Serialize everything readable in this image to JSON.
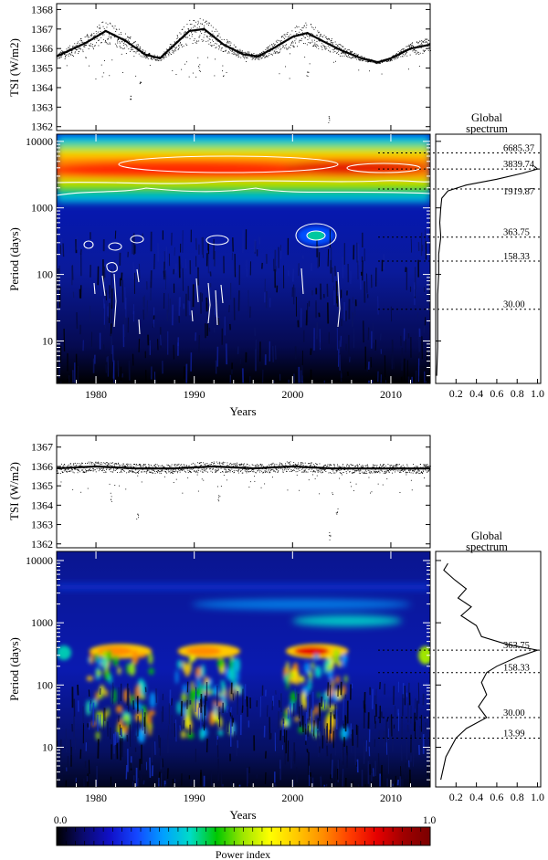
{
  "chart_data": [
    {
      "type": "scatter",
      "panel": "top-tsi-raw",
      "ylabel": "TSI (W/m2)",
      "xlim": [
        1976,
        2014
      ],
      "ylim": [
        1361.8,
        1368.3
      ],
      "yticks": [
        1362,
        1363,
        1364,
        1365,
        1366,
        1367,
        1368
      ],
      "series": [
        {
          "x": [
            1976,
            1979,
            1981,
            1983,
            1985,
            1986.5,
            1988,
            1989.5,
            1991,
            1993,
            1995,
            1996.5,
            1998,
            2000,
            2001.5,
            2003,
            2005,
            2007,
            2008.7,
            2010,
            2012,
            2014
          ],
          "values": [
            1365.6,
            1366.3,
            1366.9,
            1366.4,
            1365.7,
            1365.5,
            1366.2,
            1366.9,
            1367.0,
            1366.2,
            1365.7,
            1365.6,
            1366.0,
            1366.6,
            1366.8,
            1366.4,
            1365.9,
            1365.5,
            1365.3,
            1365.5,
            1366.0,
            1366.2
          ]
        }
      ]
    },
    {
      "type": "heatmap",
      "panel": "top-wavelet",
      "xlabel": "Years",
      "ylabel": "Period (days)",
      "xlim": [
        1976,
        2014
      ],
      "xticks": [
        1980,
        1990,
        2000,
        2010
      ],
      "ylim": [
        2.3,
        12800
      ],
      "yscale": "log",
      "yticks": [
        10,
        100,
        1000,
        10000
      ]
    },
    {
      "type": "line",
      "panel": "top-global-spectrum",
      "title": "Global spectrum",
      "xlim": [
        0,
        1
      ],
      "xticks": [
        0.2,
        0.4,
        0.6,
        0.8,
        1.0
      ],
      "yscale": "log",
      "peaks": [
        6685.37,
        3839.74,
        1919.87,
        363.75,
        158.33,
        30.0
      ],
      "x": [
        1.0,
        0.97,
        0.85,
        0.6,
        0.3,
        0.12,
        0.06,
        0.05,
        0.04,
        0.05,
        0.03,
        0.03,
        0.02,
        0.02,
        0.02,
        0.01
      ],
      "y": [
        3839.74,
        4200,
        3300,
        2700,
        2200,
        1800,
        1400,
        1000,
        600,
        364,
        200,
        100,
        50,
        20,
        8,
        3
      ]
    },
    {
      "type": "scatter",
      "panel": "bottom-tsi-detrended",
      "ylabel": "TSI (W/m2)",
      "xlim": [
        1976,
        2014
      ],
      "ylim": [
        1361.8,
        1367.6
      ],
      "yticks": [
        1362,
        1363,
        1364,
        1365,
        1366,
        1367
      ],
      "series": [
        {
          "x": [
            1976,
            1980,
            1984,
            1988,
            1992,
            1996,
            2000,
            2004,
            2008,
            2012,
            2014
          ],
          "values": [
            1365.9,
            1366.0,
            1365.9,
            1365.9,
            1366.0,
            1365.9,
            1366.0,
            1365.9,
            1365.9,
            1365.9,
            1365.9
          ]
        }
      ]
    },
    {
      "type": "heatmap",
      "panel": "bottom-wavelet",
      "xlabel": "Years",
      "ylabel": "Period (days)",
      "xlim": [
        1976,
        2014
      ],
      "xticks": [
        1980,
        1990,
        2000,
        2010
      ],
      "ylim": [
        2.3,
        14000
      ],
      "yscale": "log",
      "yticks": [
        10,
        100,
        1000,
        10000
      ]
    },
    {
      "type": "line",
      "panel": "bottom-global-spectrum",
      "title": "Global spectrum",
      "xlim": [
        0,
        1
      ],
      "xticks": [
        0.2,
        0.4,
        0.6,
        0.8,
        1.0
      ],
      "yscale": "log",
      "peaks": [
        363.75,
        158.33,
        30.0,
        13.99
      ],
      "x": [
        0.12,
        0.08,
        0.18,
        0.3,
        0.22,
        0.35,
        0.25,
        0.4,
        0.45,
        0.7,
        1.0,
        0.8,
        0.6,
        0.5,
        0.45,
        0.5,
        0.42,
        0.5,
        0.3,
        0.2,
        0.1,
        0.05
      ],
      "y": [
        9000,
        7000,
        5000,
        3500,
        2500,
        1800,
        1300,
        900,
        600,
        450,
        363.75,
        280,
        200,
        158.33,
        110,
        70,
        45,
        30,
        20,
        13.99,
        7,
        3
      ]
    }
  ],
  "colorbar": {
    "min_label": "0.0",
    "max_label": "1.0",
    "label": "Power index",
    "colors": [
      "#000000",
      "#0a0a6e",
      "#1010c8",
      "#1446ff",
      "#00a0ff",
      "#00dcc8",
      "#00c800",
      "#a0e600",
      "#ffff00",
      "#ffc800",
      "#ff8c00",
      "#ff3c00",
      "#e60000",
      "#a00000",
      "#7a0000"
    ]
  }
}
